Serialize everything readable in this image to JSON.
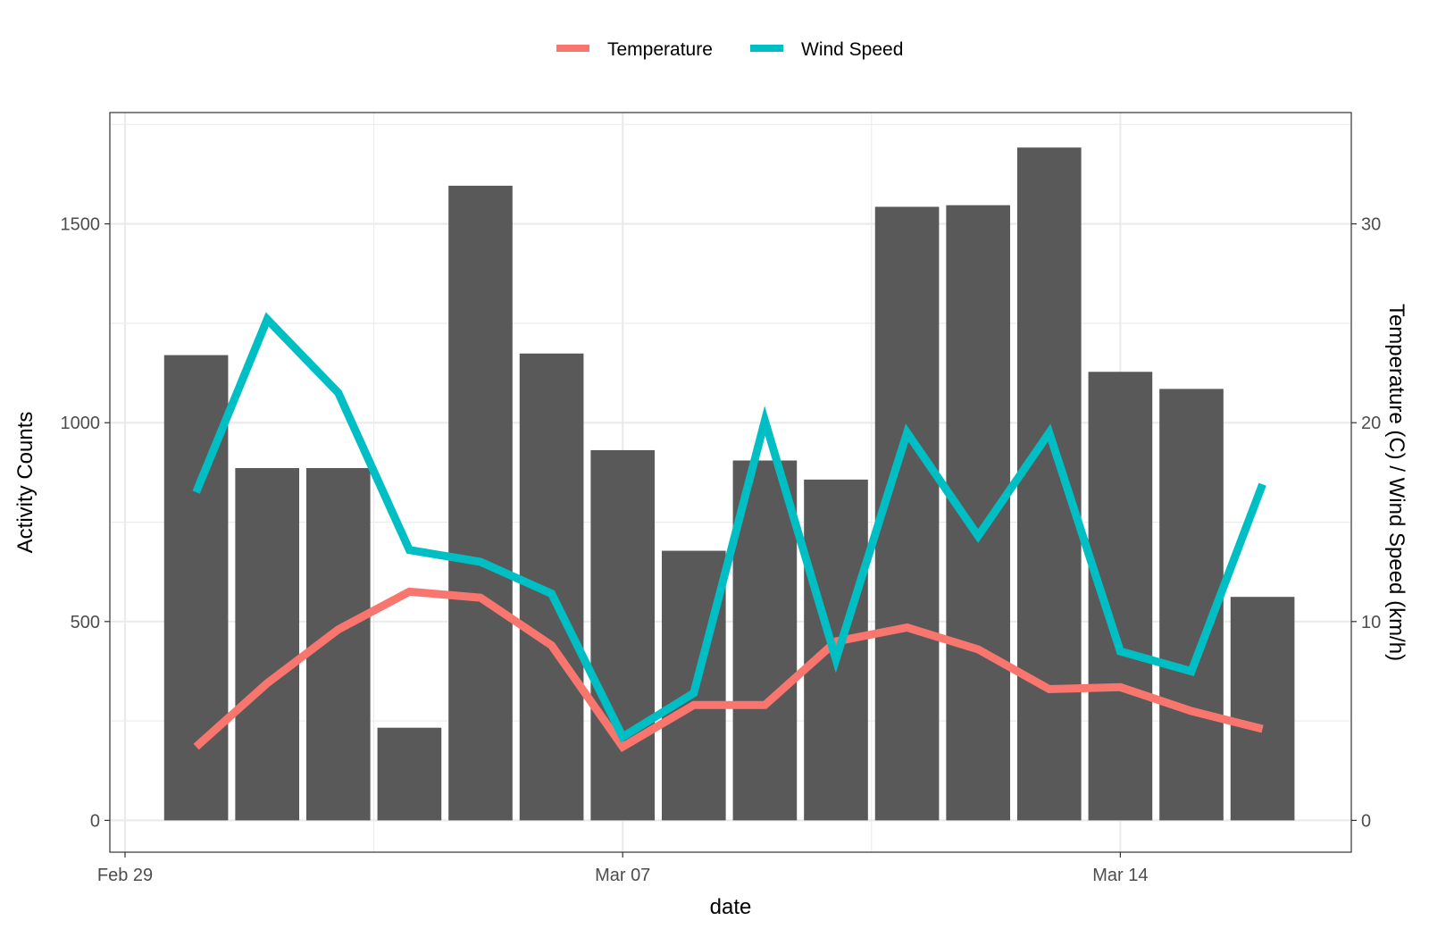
{
  "chart_data": {
    "type": "bar",
    "title": "",
    "xlabel": "date",
    "ylabel_left": "Activity Counts",
    "ylabel_right": "Temperature (C) / Wind Speed (km/h)",
    "x_ticks": [
      "Feb 29",
      "Mar 07",
      "Mar 14"
    ],
    "y_left_ticks": [
      0,
      500,
      1000,
      1500
    ],
    "y_right_ticks": [
      0,
      10,
      20,
      30
    ],
    "y_left_range": [
      -80,
      1780
    ],
    "y_right_range": [
      -1.6,
      35.6
    ],
    "grid": true,
    "legend_position": "top",
    "dates": [
      "2020-03-01",
      "2020-03-02",
      "2020-03-03",
      "2020-03-04",
      "2020-03-05",
      "2020-03-06",
      "2020-03-07",
      "2020-03-08",
      "2020-03-09",
      "2020-03-10",
      "2020-03-11",
      "2020-03-12",
      "2020-03-13",
      "2020-03-14",
      "2020-03-15",
      "2020-03-16"
    ],
    "bars": {
      "name": "Activity Counts",
      "color": "#595959",
      "values": [
        1170,
        886,
        886,
        233,
        1596,
        1174,
        931,
        678,
        905,
        857,
        1543,
        1547,
        1692,
        1128,
        1085,
        562
      ]
    },
    "series": [
      {
        "name": "Temperature",
        "color": "#F8766D",
        "values": [
          3.7,
          6.9,
          9.6,
          11.5,
          11.2,
          8.8,
          3.7,
          5.8,
          5.8,
          9.0,
          9.7,
          8.6,
          6.6,
          6.7,
          5.5,
          4.6
        ]
      },
      {
        "name": "Wind Speed",
        "color": "#00BFC4",
        "values": [
          16.5,
          25.2,
          21.5,
          13.6,
          13.0,
          11.4,
          4.2,
          6.4,
          20.1,
          8.1,
          19.5,
          14.3,
          19.5,
          8.5,
          7.5,
          16.9
        ]
      }
    ]
  }
}
